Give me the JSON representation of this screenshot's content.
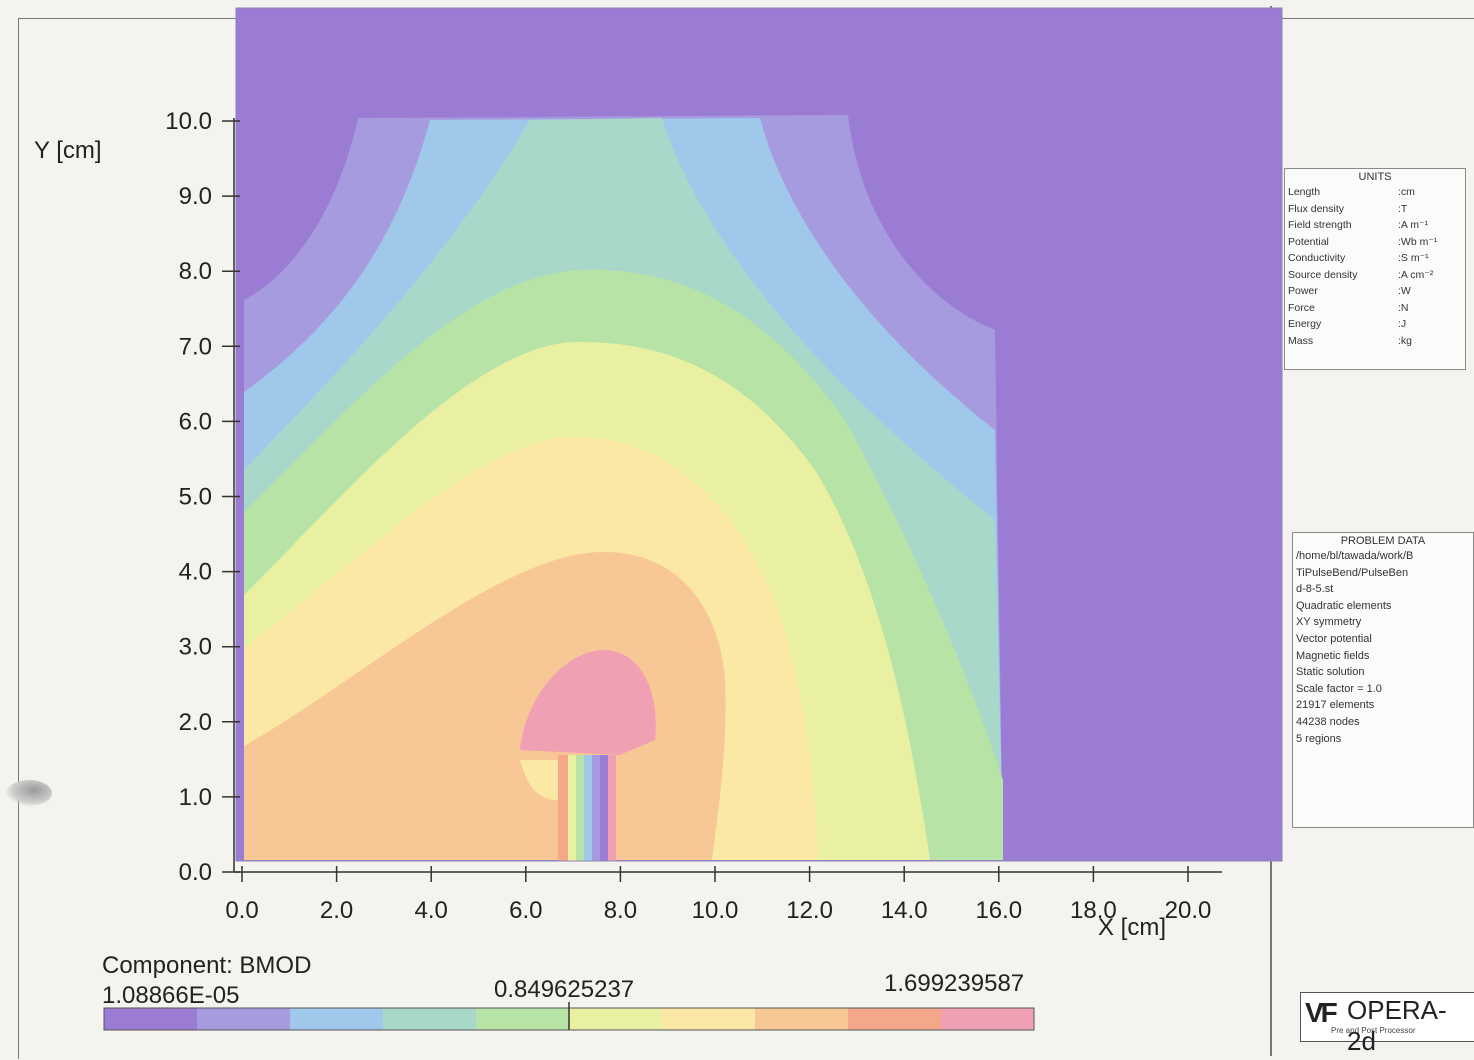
{
  "chart_data": {
    "type": "heatmap",
    "title": "",
    "xlabel": "X [cm]",
    "ylabel": "Y [cm]",
    "xlim": [
      0,
      20
    ],
    "ylim": [
      0,
      10
    ],
    "x_ticks": [
      "0.0",
      "2.0",
      "4.0",
      "6.0",
      "8.0",
      "10.0",
      "12.0",
      "14.0",
      "16.0",
      "18.0",
      "20.0"
    ],
    "y_ticks": [
      "0.0",
      "1.0",
      "2.0",
      "3.0",
      "4.0",
      "5.0",
      "6.0",
      "7.0",
      "8.0",
      "9.0",
      "10.0"
    ],
    "component_label": "Component: BMOD",
    "colorbar": {
      "min_label": "1.08866E-05",
      "mid_label": "0.849625237",
      "max_label": "1.699239587",
      "min": 1.08866e-05,
      "mid": 0.849625237,
      "max": 1.699239587,
      "colors": [
        "#9a7cd4",
        "#a79be0",
        "#9fc8ea",
        "#a8d8c9",
        "#b8e3a6",
        "#e9f0a2",
        "#fbe8a4",
        "#f7c796",
        "#f4a789",
        "#f0a0b3"
      ]
    }
  },
  "units_box": {
    "header": "UNITS",
    "rows": [
      {
        "name": "Length",
        "value": ":cm"
      },
      {
        "name": "Flux density",
        "value": ":T"
      },
      {
        "name": "Field strength",
        "value": ":A m⁻¹"
      },
      {
        "name": "Potential",
        "value": ":Wb m⁻¹"
      },
      {
        "name": "Conductivity",
        "value": ":S m⁻¹"
      },
      {
        "name": "Source density",
        "value": ":A cm⁻²"
      },
      {
        "name": "Power",
        "value": ":W"
      },
      {
        "name": "Force",
        "value": ":N"
      },
      {
        "name": "Energy",
        "value": ":J"
      },
      {
        "name": "Mass",
        "value": ":kg"
      }
    ]
  },
  "problem_box": {
    "header": "PROBLEM DATA",
    "lines": [
      "/home/bl/tawada/work/B",
      "TiPulseBend/PulseBen",
      "d-8-5.st",
      "Quadratic elements",
      "XY symmetry",
      "Vector potential",
      "Magnetic fields",
      "Static solution",
      "Scale factor = 1.0",
      "21917 elements",
      "44238 nodes",
      "5 regions"
    ]
  },
  "logo": {
    "mark": "VF",
    "name": "OPERA-2d",
    "subtitle": "Pre and Post Processor"
  }
}
